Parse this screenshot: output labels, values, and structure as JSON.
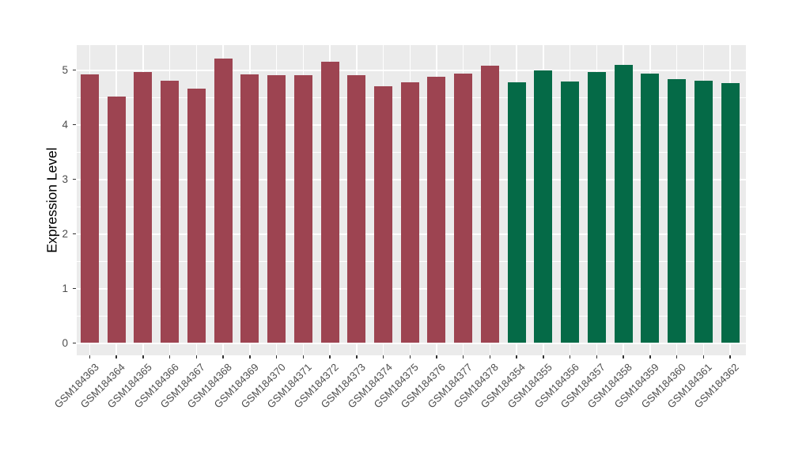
{
  "colors": {
    "figure_bg": "#FFFFFF",
    "panel_bg": "#EBEBEB",
    "grid_major": "#FFFFFF",
    "grid_minor": "#FFFFFF",
    "tick_mark": "#333333",
    "tick_label": "#4D4D4D",
    "axis_title": "#000000"
  },
  "chart_data": {
    "type": "bar",
    "title": "",
    "xlabel": "",
    "ylabel": "Expression Level",
    "ylim": [
      0,
      5.45
    ],
    "yticks": [
      0,
      1,
      2,
      3,
      4,
      5
    ],
    "grid": true,
    "legend": "none",
    "categories": [
      "GSM184363",
      "GSM184364",
      "GSM184365",
      "GSM184366",
      "GSM184367",
      "GSM184368",
      "GSM184369",
      "GSM184370",
      "GSM184371",
      "GSM184372",
      "GSM184373",
      "GSM184374",
      "GSM184375",
      "GSM184376",
      "GSM184377",
      "GSM184378",
      "GSM184354",
      "GSM184355",
      "GSM184356",
      "GSM184357",
      "GSM184358",
      "GSM184359",
      "GSM184360",
      "GSM184361",
      "GSM184362"
    ],
    "values": [
      4.92,
      4.52,
      4.97,
      4.8,
      4.66,
      5.21,
      4.92,
      4.91,
      4.91,
      5.15,
      4.91,
      4.7,
      4.78,
      4.87,
      4.93,
      5.08,
      4.77,
      4.99,
      4.79,
      4.97,
      5.09,
      4.94,
      4.83,
      4.8,
      4.76
    ],
    "groups": [
      "group1",
      "group1",
      "group1",
      "group1",
      "group1",
      "group1",
      "group1",
      "group1",
      "group1",
      "group1",
      "group1",
      "group1",
      "group1",
      "group1",
      "group1",
      "group1",
      "group2",
      "group2",
      "group2",
      "group2",
      "group2",
      "group2",
      "group2",
      "group2",
      "group2"
    ],
    "group_colors": {
      "group1": "#9D4451",
      "group2": "#056A47"
    }
  }
}
